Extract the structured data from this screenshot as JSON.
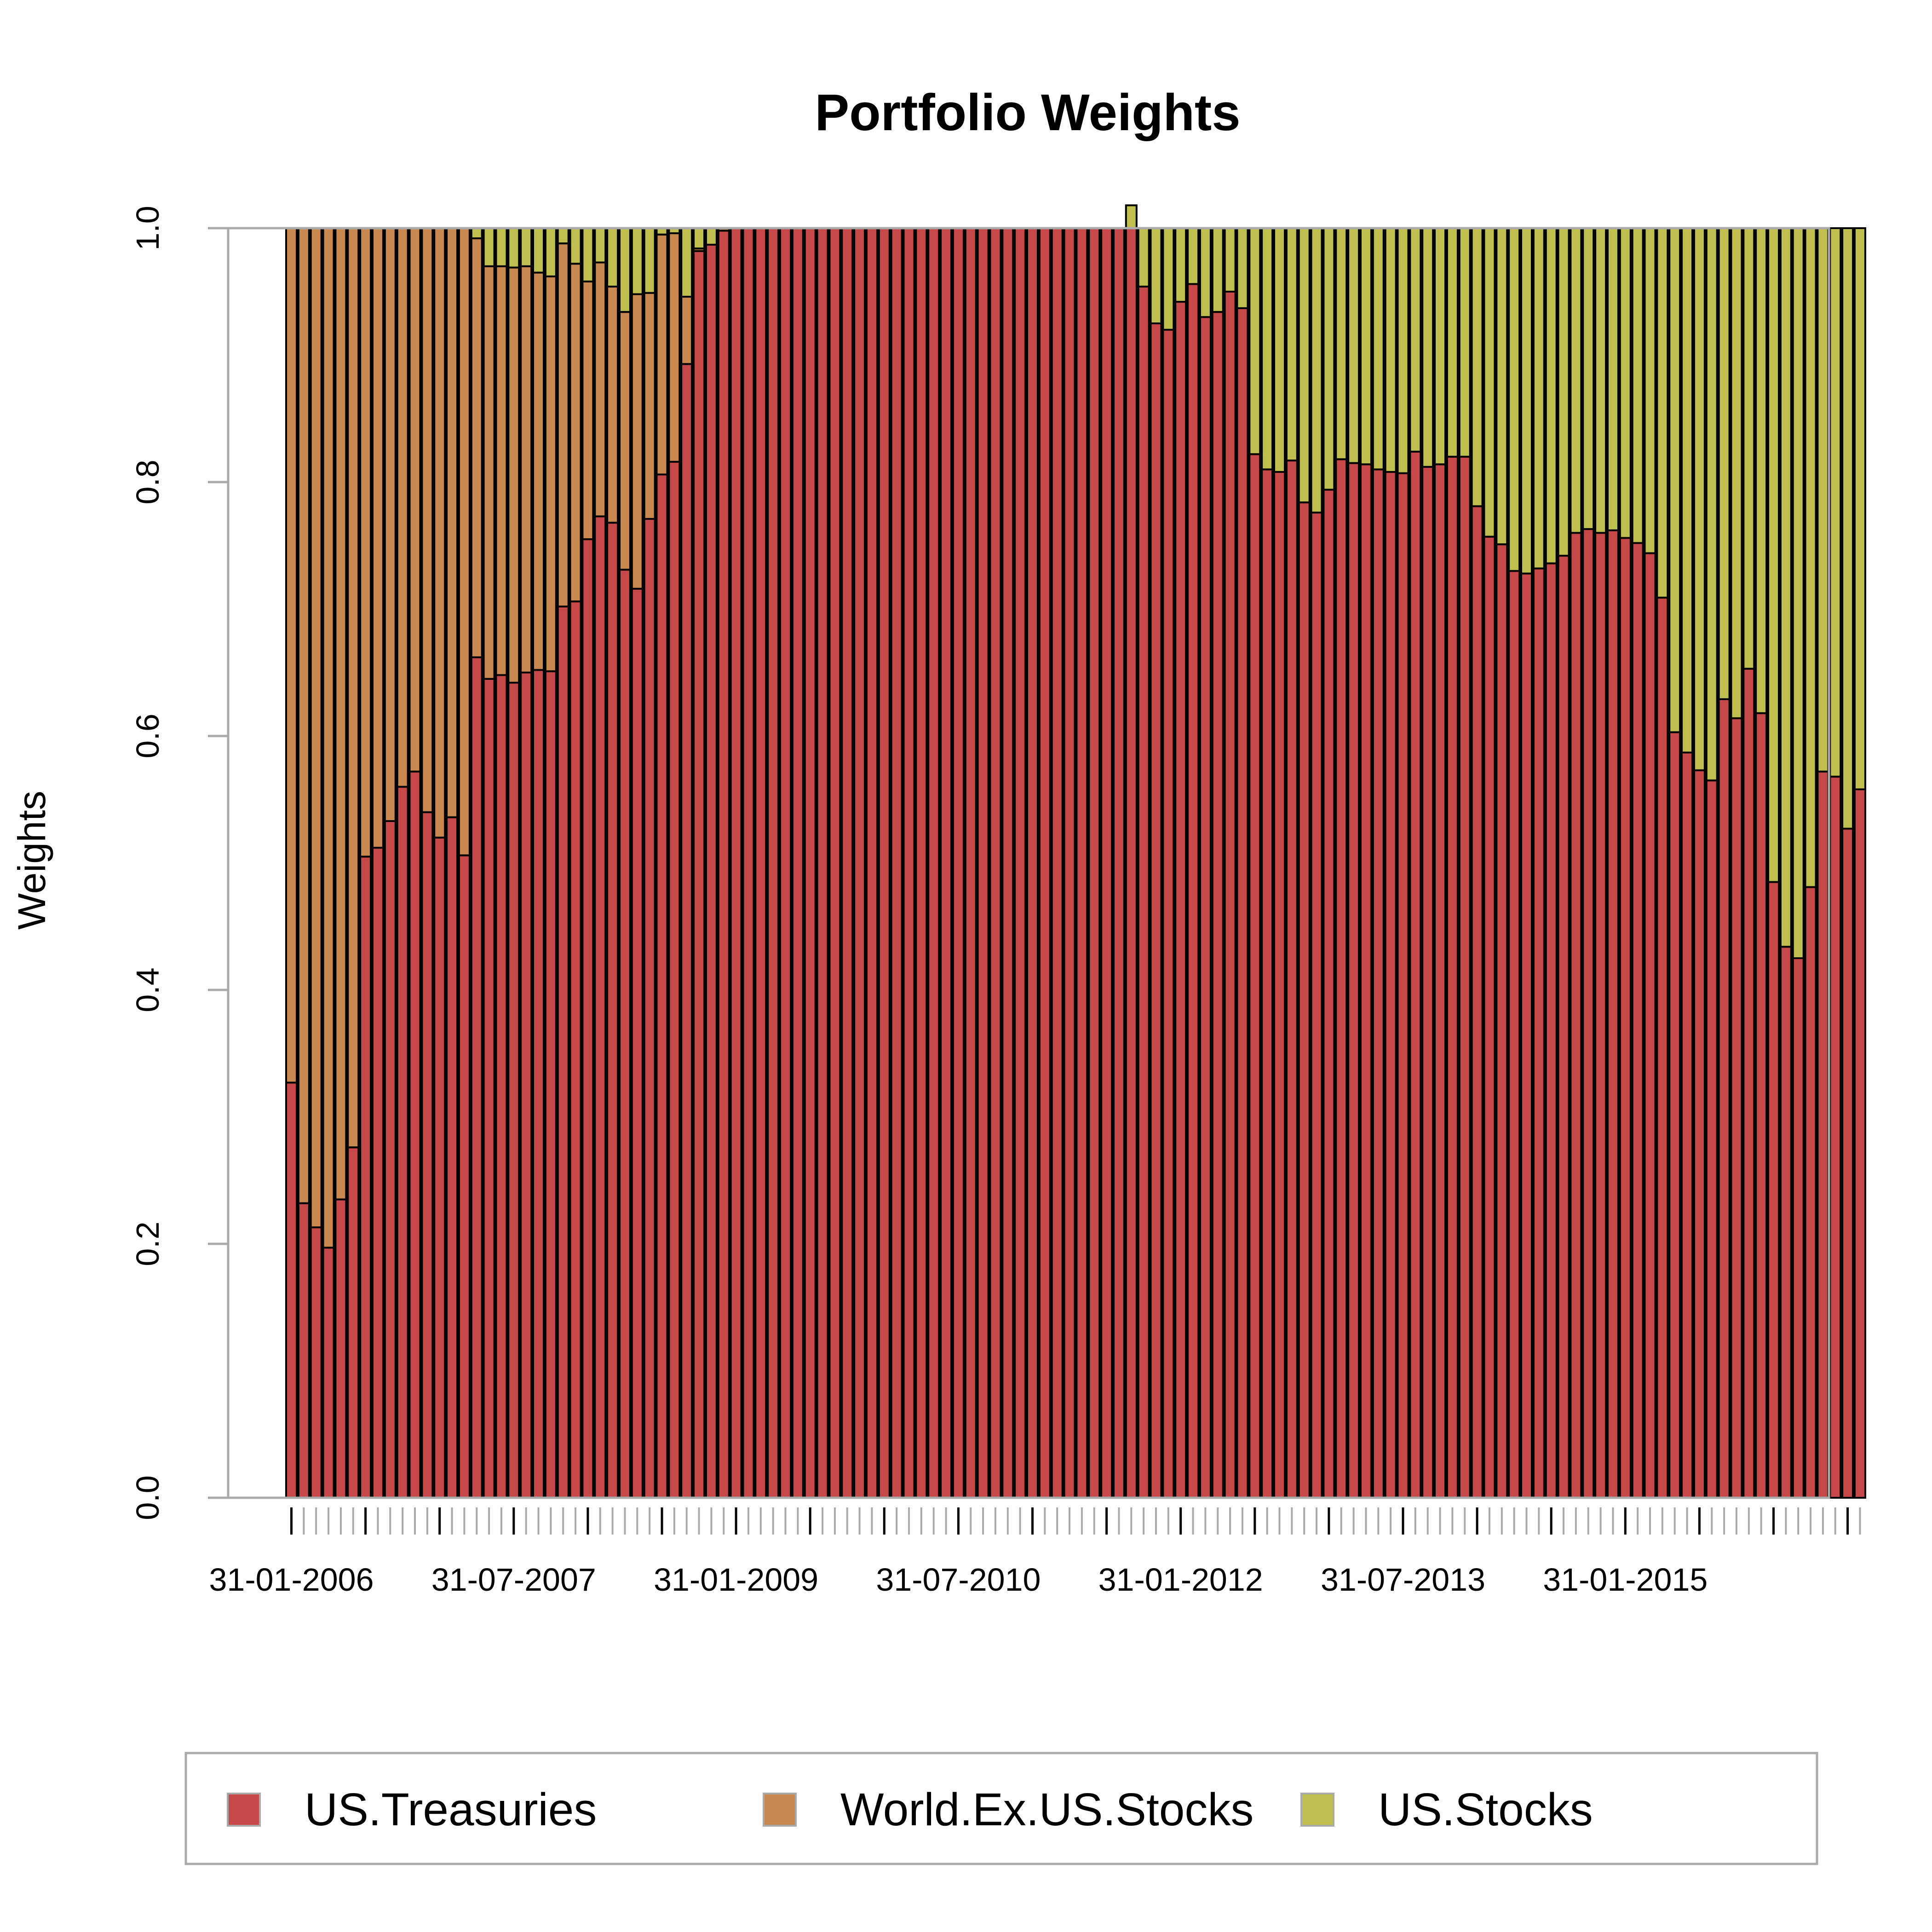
{
  "chart_data": {
    "type": "bar",
    "stacked": true,
    "title": "Portfolio Weights",
    "xlabel": "",
    "ylabel": "Weights",
    "ylim": [
      0,
      1
    ],
    "yticks": [
      "0.0",
      "0.2",
      "0.4",
      "0.6",
      "0.8",
      "1.0"
    ],
    "first_month": "31-01-2006",
    "xtick_labels": [
      "31-01-2006",
      "31-07-2007",
      "31-01-2009",
      "31-07-2010",
      "31-01-2012",
      "31-07-2013",
      "31-01-2015"
    ],
    "xtick_label_every": 18,
    "legend_position": "bottom",
    "series": [
      {
        "name": "US.Treasuries",
        "color": "#C74848",
        "values": [
          0.327,
          0.232,
          0.213,
          0.197,
          0.235,
          0.276,
          0.505,
          0.512,
          0.533,
          0.56,
          0.572,
          0.54,
          0.52,
          0.536,
          0.506,
          0.662,
          0.645,
          0.648,
          0.642,
          0.65,
          0.652,
          0.651,
          0.702,
          0.706,
          0.755,
          0.773,
          0.768,
          0.731,
          0.716,
          0.771,
          0.806,
          0.816,
          0.893,
          0.982,
          0.987,
          0.998,
          1.0,
          1.0,
          1.0,
          1.0,
          1.0,
          1.0,
          1.0,
          1.0,
          1.0,
          1.0,
          1.0,
          1.0,
          1.0,
          1.0,
          1.0,
          1.0,
          1.0,
          1.0,
          1.0,
          1.0,
          1.0,
          1.0,
          1.0,
          1.0,
          1.0,
          1.0,
          1.0,
          1.0,
          1.0,
          1.0,
          1.0,
          1.0,
          1.0,
          0.954,
          0.925,
          0.92,
          0.942,
          0.956,
          0.93,
          0.934,
          0.95,
          0.937,
          0.822,
          0.81,
          0.808,
          0.817,
          0.784,
          0.776,
          0.794,
          0.818,
          0.815,
          0.814,
          0.81,
          0.808,
          0.807,
          0.824,
          0.812,
          0.814,
          0.82,
          0.82,
          0.781,
          0.757,
          0.751,
          0.73,
          0.728,
          0.732,
          0.736,
          0.742,
          0.76,
          0.763,
          0.76,
          0.762,
          0.756,
          0.752,
          0.744,
          0.709,
          0.603,
          0.587,
          0.573,
          0.565,
          0.629,
          0.614,
          0.653,
          0.618,
          0.485,
          0.434,
          0.425,
          0.481,
          0.572,
          0.568,
          0.527,
          0.558
        ]
      },
      {
        "name": "World.Ex.US.Stocks",
        "color": "#C88850",
        "values": [
          0.673,
          0.768,
          0.787,
          0.803,
          0.765,
          0.724,
          0.495,
          0.488,
          0.467,
          0.44,
          0.428,
          0.46,
          0.48,
          0.464,
          0.494,
          0.33,
          0.325,
          0.322,
          0.327,
          0.32,
          0.313,
          0.311,
          0.286,
          0.266,
          0.203,
          0.2,
          0.186,
          0.203,
          0.232,
          0.178,
          0.189,
          0.18,
          0.053,
          0.002,
          0.0,
          0.002,
          0.0,
          0.0,
          0.0,
          0.0,
          0.0,
          0.0,
          0.0,
          0.0,
          0.0,
          0.0,
          0.0,
          0.0,
          0.0,
          0.0,
          0.0,
          0.0,
          0.0,
          0.0,
          0.0,
          0.0,
          0.0,
          0.0,
          0.0,
          0.0,
          0.0,
          0.0,
          0.0,
          0.0,
          0.0,
          0.0,
          0.0,
          0.0,
          0.0,
          0.0,
          0.0,
          0.0,
          0.0,
          0.0,
          0.0,
          0.0,
          0.0,
          0.0,
          0.0,
          0.0,
          0.0,
          0.0,
          0.0,
          0.0,
          0.0,
          0.0,
          0.0,
          0.0,
          0.0,
          0.0,
          0.0,
          0.0,
          0.0,
          0.0,
          0.0,
          0.0,
          0.0,
          0.0,
          0.0,
          0.0,
          0.0,
          0.0,
          0.0,
          0.0,
          0.0,
          0.0,
          0.0,
          0.0,
          0.0,
          0.0,
          0.0,
          0.0,
          0.0,
          0.0,
          0.0,
          0.0,
          0.0,
          0.0,
          0.0,
          0.0,
          0.0,
          0.0,
          0.0,
          0.0,
          0.0,
          0.0,
          0.0,
          0.0
        ]
      },
      {
        "name": "US.Stocks",
        "color": "#BFBF4F",
        "values": [
          0.0,
          0.0,
          0.0,
          0.0,
          0.0,
          0.0,
          0.0,
          0.0,
          0.0,
          0.0,
          0.0,
          0.0,
          0.0,
          0.0,
          0.0,
          0.008,
          0.03,
          0.03,
          0.031,
          0.03,
          0.035,
          0.038,
          0.012,
          0.028,
          0.042,
          0.027,
          0.046,
          0.066,
          0.052,
          0.051,
          0.005,
          0.004,
          0.054,
          0.016,
          0.013,
          0.0,
          0.0,
          0.0,
          0.0,
          0.0,
          0.0,
          0.0,
          0.0,
          0.0,
          0.0,
          0.0,
          0.0,
          0.0,
          0.0,
          0.0,
          0.0,
          0.0,
          0.0,
          0.0,
          0.0,
          0.0,
          0.0,
          0.0,
          0.0,
          0.0,
          0.0,
          0.0,
          0.0,
          0.0,
          0.0,
          0.0,
          0.0,
          0.0,
          0.018,
          0.046,
          0.075,
          0.08,
          0.058,
          0.044,
          0.07,
          0.066,
          0.05,
          0.063,
          0.178,
          0.19,
          0.192,
          0.183,
          0.216,
          0.224,
          0.206,
          0.182,
          0.185,
          0.186,
          0.19,
          0.192,
          0.193,
          0.176,
          0.188,
          0.186,
          0.18,
          0.18,
          0.219,
          0.243,
          0.249,
          0.27,
          0.272,
          0.268,
          0.264,
          0.258,
          0.24,
          0.237,
          0.24,
          0.238,
          0.244,
          0.248,
          0.256,
          0.291,
          0.397,
          0.413,
          0.427,
          0.435,
          0.371,
          0.386,
          0.347,
          0.382,
          0.515,
          0.566,
          0.575,
          0.519,
          0.428,
          0.432,
          0.473,
          0.442
        ]
      }
    ]
  }
}
